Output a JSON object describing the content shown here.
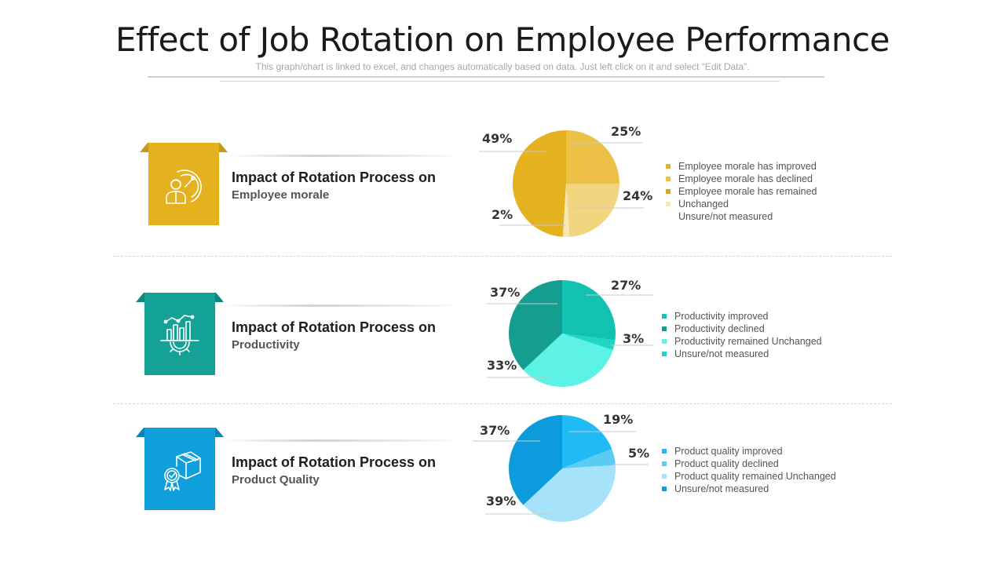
{
  "page": {
    "title": "Effect of Job Rotation on Employee Performance",
    "subtitle": "This graph/chart is linked to excel, and changes automatically based on data. Just left click on it and select “Edit Data”."
  },
  "sections": [
    {
      "heading": "Impact of Rotation Process on",
      "subheading": "Employee morale",
      "icon": "employee-performance-meter-icon",
      "badge_color": "#E3B21E",
      "ribbon_color": "#C49A1A",
      "fold_color": "#8C6B0C"
    },
    {
      "heading": "Impact of Rotation Process on",
      "subheading": "Productivity",
      "icon": "productivity-gear-chart-icon",
      "badge_color": "#14A196",
      "ribbon_color": "#0E877E",
      "fold_color": "#08574F"
    },
    {
      "heading": "Impact of Rotation Process on",
      "subheading": "Product Quality",
      "icon": "quality-box-ribbon-icon",
      "badge_color": "#0E9FDC",
      "ribbon_color": "#0B82B6",
      "fold_color": "#075A80"
    }
  ],
  "chart_data": [
    {
      "type": "pie",
      "title": "Employee morale",
      "labels": [
        "Employee morale has improved",
        "Employee morale has declined",
        "Employee morale has remained Unchanged",
        "Unsure/not measured"
      ],
      "legend_lines": [
        "Employee morale has improved",
        "Employee morale has declined",
        "Employee morale has remained",
        "Unchanged",
        "Unsure/not measured"
      ],
      "values": [
        25,
        24,
        2,
        49
      ],
      "value_labels": [
        "25%",
        "24%",
        "2%",
        "49%"
      ],
      "colors": [
        "#EBC044",
        "#F2D57E",
        "#F7E7B4",
        "#E3B21E"
      ],
      "legend_colors": [
        "#E3B21E",
        "#EBC044",
        "#D9A520",
        "#F7E7B4",
        ""
      ]
    },
    {
      "type": "pie",
      "title": "Productivity",
      "labels": [
        "Productivity improved",
        "Productivity declined",
        "Productivity remained Unchanged",
        "Unsure/not measured"
      ],
      "legend_lines": [
        "Productivity improved",
        "Productivity declined",
        "Productivity remained Unchanged",
        "Unsure/not measured"
      ],
      "values": [
        27,
        3,
        33,
        37
      ],
      "value_labels": [
        "27%",
        "3%",
        "33%",
        "37%"
      ],
      "colors": [
        "#10C2AF",
        "#1ED6C2",
        "#5CF2E6",
        "#139E8F"
      ],
      "legend_colors": [
        "#10C2AF",
        "#139E8F",
        "#5CF2E6",
        "#1ED6C2"
      ]
    },
    {
      "type": "pie",
      "title": "Product Quality",
      "labels": [
        "Product quality improved",
        "Product quality declined",
        "Product quality remained Unchanged",
        "Unsure/not measured"
      ],
      "legend_lines": [
        "Product quality improved",
        "Product quality declined",
        "Product quality remained Unchanged",
        "Unsure/not measured"
      ],
      "values": [
        19,
        5,
        39,
        37
      ],
      "value_labels": [
        "19%",
        "5%",
        "39%",
        "37%"
      ],
      "colors": [
        "#20BBF5",
        "#5ACCF4",
        "#A6E3FA",
        "#0C9BDC"
      ],
      "legend_colors": [
        "#20BBF5",
        "#5ACCF4",
        "#A6E3FA",
        "#0C9BDC"
      ]
    }
  ]
}
